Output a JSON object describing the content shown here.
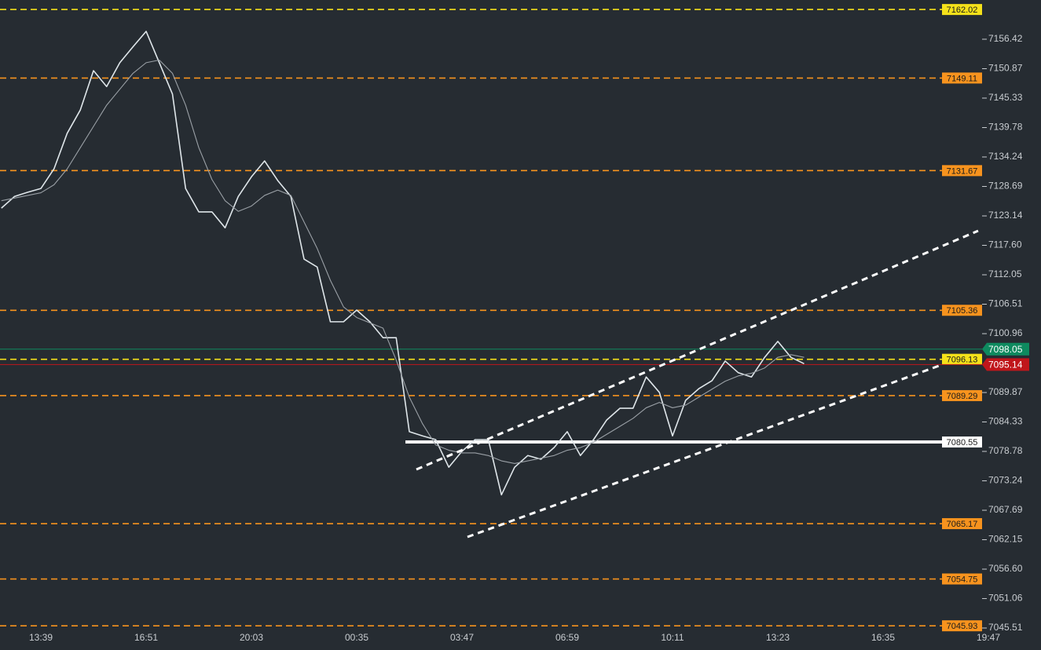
{
  "chart_data": {
    "type": "line",
    "categories": [
      null,
      null,
      null,
      "13:39",
      null,
      null,
      null,
      null,
      null,
      null,
      null,
      "16:51",
      null,
      null,
      null,
      null,
      null,
      null,
      null,
      "20:03",
      null,
      null,
      null,
      null,
      null,
      null,
      null,
      "00:35",
      null,
      null,
      null,
      null,
      null,
      null,
      null,
      "03:47",
      null,
      null,
      null,
      null,
      null,
      null,
      null,
      "06:59",
      null,
      null,
      null,
      null,
      null,
      null,
      null,
      "10:11",
      null,
      null,
      null,
      null,
      null,
      null,
      null,
      "13:23",
      null,
      null,
      null,
      null,
      null,
      null,
      null,
      "16:35",
      null,
      null,
      null,
      null,
      null,
      null,
      null,
      "19:47"
    ],
    "series": [
      {
        "color": "#dfe6ea",
        "values": [
          7124.6,
          7126.8,
          7127.6,
          7128.3,
          7132.0,
          7138.7,
          7143.1,
          7150.5,
          7147.5,
          7152.0,
          7155.0,
          7157.9,
          7152.0,
          7146.1,
          7128.3,
          7123.9,
          7123.9,
          7120.9,
          7126.8,
          7130.5,
          7133.5,
          7129.8,
          7126.8,
          7115.0,
          7113.5,
          7103.2,
          7103.2,
          7105.4,
          7103.2,
          7100.2,
          7100.2,
          7082.5,
          7081.7,
          7081.0,
          7075.8,
          7078.8,
          7081.0,
          7081.0,
          7070.6,
          7075.8,
          7078.0,
          7077.3,
          7079.5,
          7082.5,
          7078.0,
          7081.0,
          7084.7,
          7086.9,
          7086.9,
          7092.8,
          7089.9,
          7081.7,
          7088.4,
          7090.6,
          7092.1,
          7095.8,
          7093.6,
          7092.8,
          7096.5,
          7099.5,
          7096.5,
          7095.3,
          null,
          null,
          null,
          null,
          null,
          null,
          null,
          null,
          null,
          null,
          null,
          null,
          null,
          null
        ]
      },
      {
        "color": "#9aa0a6",
        "values": [
          7126,
          7126.5,
          7127,
          7127.5,
          7129,
          7132,
          7136,
          7140,
          7144,
          7147,
          7150,
          7152,
          7152.5,
          7150,
          7144,
          7136,
          7130,
          7126,
          7124,
          7125,
          7127,
          7128,
          7127,
          7122,
          7117,
          7111,
          7106,
          7104,
          7103,
          7102,
          7096,
          7089,
          7084,
          7080,
          7079,
          7078.5,
          7078.5,
          7078,
          7077,
          7076.5,
          7077,
          7077.5,
          7078,
          7079,
          7079.5,
          7080.5,
          7082,
          7083.5,
          7085,
          7087,
          7088,
          7087,
          7087.5,
          7089,
          7090.5,
          7092,
          7093,
          7093.5,
          7094.5,
          7096.5,
          7097,
          7096.5,
          null,
          null,
          null,
          null,
          null,
          null,
          null,
          null,
          null,
          null,
          null,
          null,
          null,
          null
        ]
      }
    ],
    "ylim": [
      7041.37,
      7163.81
    ],
    "yticks": [
      7156.42,
      7150.87,
      7145.33,
      7139.78,
      7134.24,
      7128.69,
      7123.14,
      {
        "value": 7117.6,
        "label": "7117.60"
      },
      7112.05,
      7106.51,
      7100.96,
      7089.87,
      7084.33,
      7078.78,
      7073.24,
      7067.69,
      7062.15,
      {
        "value": 7056.6,
        "label": "7056.60"
      },
      7051.06,
      7045.51
    ],
    "levels": [
      {
        "value": 7162.02,
        "color": "#f5e11a"
      },
      {
        "value": 7149.11,
        "color": "#f7931e"
      },
      {
        "value": 7131.67,
        "color": "#f7931e"
      },
      {
        "value": 7105.36,
        "color": "#f7931e"
      },
      {
        "value": 7096.13,
        "color": "#f5e11a"
      },
      {
        "value": 7089.29,
        "color": "#f7931e"
      },
      {
        "value": 7065.17,
        "color": "#f7931e"
      },
      {
        "value": 7054.75,
        "color": "#f7931e"
      },
      {
        "value": 7045.93,
        "color": "#f7931e"
      },
      {
        "value": 7080.55,
        "color": "#ffffff",
        "style": "solid"
      }
    ],
    "price_tags": [
      {
        "value": 7098.05,
        "color": "#0e8a5f"
      },
      {
        "value": 7095.14,
        "color": "#c0161b"
      }
    ]
  }
}
